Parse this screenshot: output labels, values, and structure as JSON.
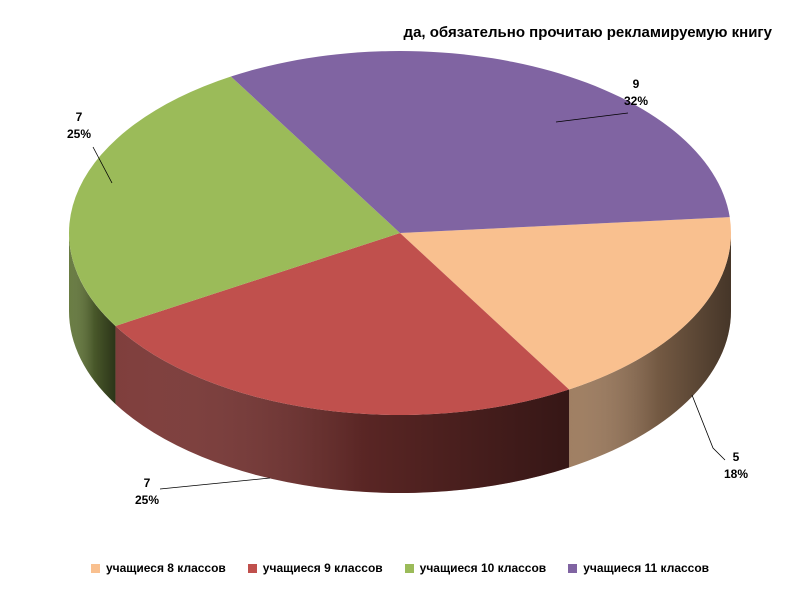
{
  "chart_data": {
    "type": "pie",
    "title": "да, обязательно прочитаю рекламируемую книгу",
    "legend_position": "bottom",
    "slices": [
      {
        "label": "учащиеся 8 классов",
        "value": 5,
        "percent_label": "18%",
        "color": "#F9C08F"
      },
      {
        "label": "учащиеся 9 классов",
        "value": 7,
        "percent_label": "25%",
        "color": "#C0504D"
      },
      {
        "label": "учащиеся 10 классов",
        "value": 7,
        "percent_label": "25%",
        "color": "#9BBB59"
      },
      {
        "label": "учащиеся 11 классов",
        "value": 9,
        "percent_label": "32%",
        "color": "#8064A2"
      }
    ]
  }
}
